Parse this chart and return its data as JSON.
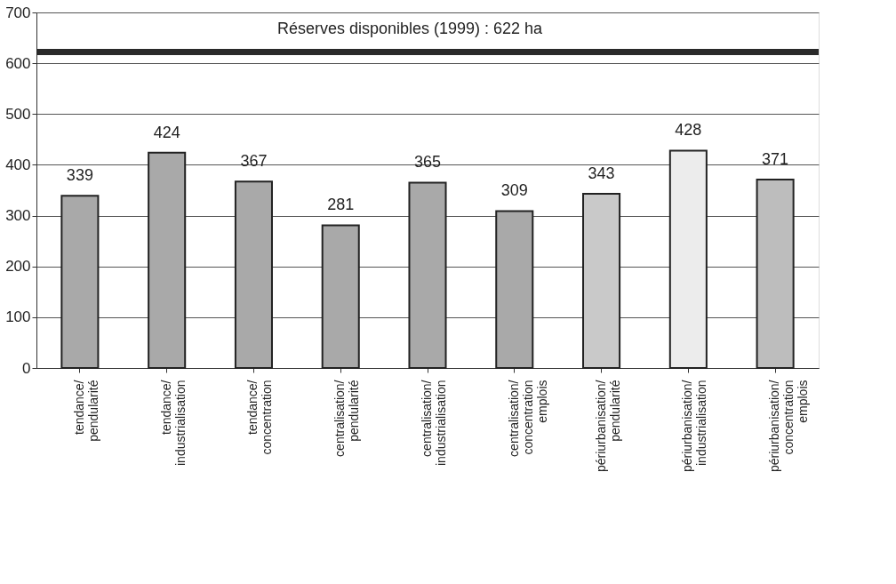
{
  "chart_data": {
    "type": "bar",
    "categories": [
      "tendance/\npendularité",
      "tendance/\nindustrialisation",
      "tendance/\nconcentration",
      "centralisation/\npendularité",
      "centralisation/\nindustrialisation",
      "centralisation/\nconcentration\nemplois",
      "périurbanisation/\npendularité",
      "périurbanisation/\nindustrialisation",
      "périurbanisation/\nconcentration\nemplois"
    ],
    "values": [
      339,
      424,
      367,
      281,
      365,
      309,
      343,
      428,
      371
    ],
    "colors": [
      "#a9a9a9",
      "#a9a9a9",
      "#a9a9a9",
      "#a9a9a9",
      "#a9a9a9",
      "#a9a9a9",
      "#c9c9c9",
      "#ececec",
      "#bdbdbd"
    ],
    "data_labels": true,
    "ylim": [
      0,
      700
    ],
    "yticks": [
      0,
      100,
      200,
      300,
      400,
      500,
      600,
      700
    ],
    "grid": "y",
    "ref_lines": [
      {
        "axis": "y",
        "value": 622,
        "label": "Réserves disponibles (1999) : 622 ha",
        "color": "#2a2a2a"
      }
    ]
  }
}
